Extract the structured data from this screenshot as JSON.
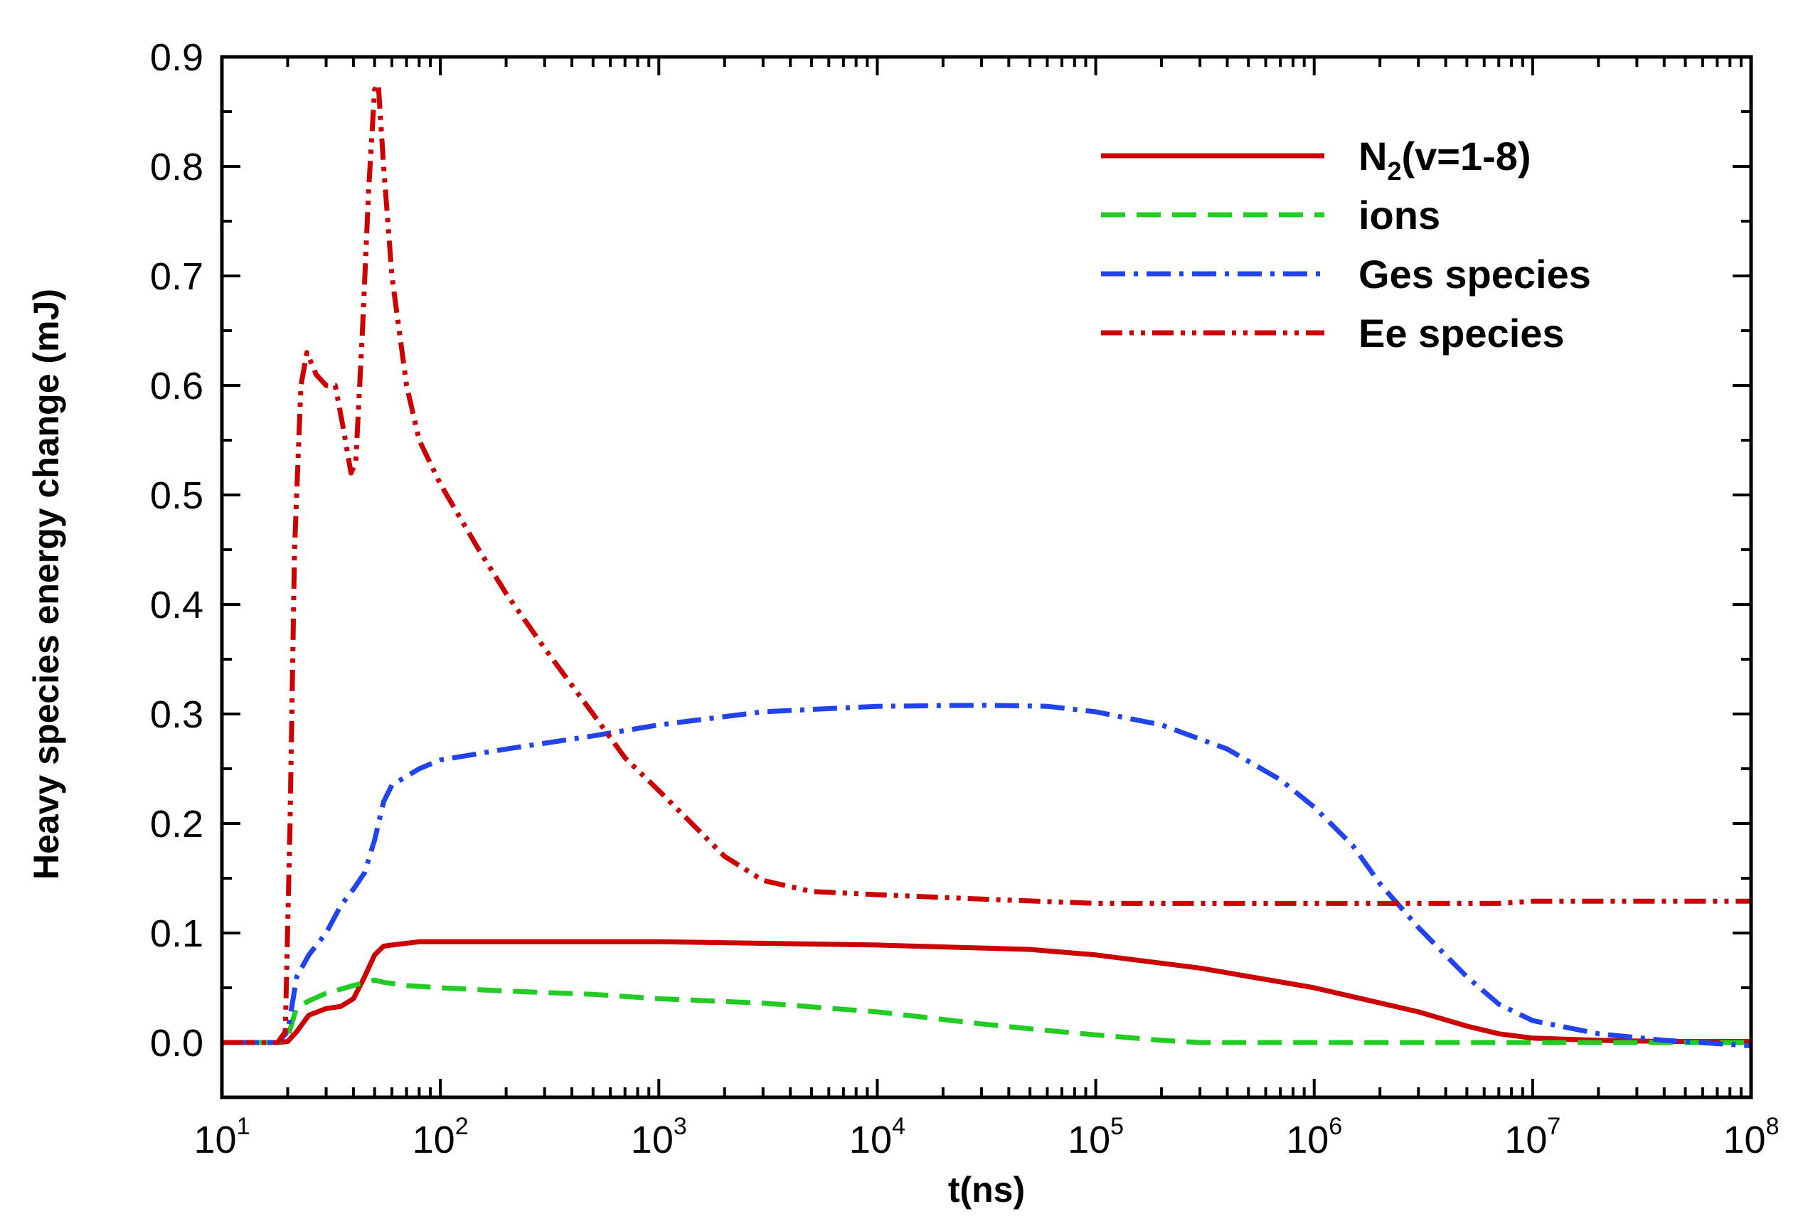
{
  "chart_data": {
    "type": "line",
    "title": "",
    "xlabel": "t(ns)",
    "ylabel": "Heavy species energy change (mJ)",
    "xscale": "log",
    "xlim": [
      10,
      100000000
    ],
    "ylim": [
      -0.05,
      0.9
    ],
    "x_ticks": [
      {
        "base": "10",
        "exp": "1",
        "value": 10
      },
      {
        "base": "10",
        "exp": "2",
        "value": 100
      },
      {
        "base": "10",
        "exp": "3",
        "value": 1000
      },
      {
        "base": "10",
        "exp": "4",
        "value": 10000
      },
      {
        "base": "10",
        "exp": "5",
        "value": 100000
      },
      {
        "base": "10",
        "exp": "6",
        "value": 1000000
      },
      {
        "base": "10",
        "exp": "7",
        "value": 10000000
      },
      {
        "base": "10",
        "exp": "8",
        "value": 100000000
      }
    ],
    "y_ticks": [
      "0.0",
      "0.1",
      "0.2",
      "0.3",
      "0.4",
      "0.5",
      "0.6",
      "0.7",
      "0.8",
      "0.9"
    ],
    "legend_position": "top-right",
    "series": [
      {
        "name": "N2(v=1-8)",
        "legend_main": "N",
        "legend_sub": "2",
        "legend_rest": "(v=1-8)",
        "color": "#cc0000",
        "dash": "solid",
        "points": [
          [
            10,
            0
          ],
          [
            18,
            0
          ],
          [
            20,
            0.001
          ],
          [
            22,
            0.01
          ],
          [
            25,
            0.025
          ],
          [
            30,
            0.031
          ],
          [
            35,
            0.033
          ],
          [
            40,
            0.04
          ],
          [
            45,
            0.06
          ],
          [
            50,
            0.08
          ],
          [
            55,
            0.088
          ],
          [
            60,
            0.089
          ],
          [
            80,
            0.092
          ],
          [
            100,
            0.092
          ],
          [
            1000,
            0.092
          ],
          [
            10000,
            0.089
          ],
          [
            50000,
            0.085
          ],
          [
            100000,
            0.08
          ],
          [
            300000,
            0.068
          ],
          [
            1000000,
            0.05
          ],
          [
            3000000,
            0.028
          ],
          [
            5000000,
            0.015
          ],
          [
            7000000,
            0.008
          ],
          [
            10000000,
            0.004
          ],
          [
            20000000,
            0.002
          ],
          [
            40000000,
            0.001
          ],
          [
            100000000,
            0.001
          ]
        ]
      },
      {
        "name": "ions",
        "legend_main": "ions",
        "legend_sub": "",
        "legend_rest": "",
        "color": "#22cc22",
        "dash": "dashed",
        "points": [
          [
            10,
            0
          ],
          [
            18,
            0
          ],
          [
            20,
            0.005
          ],
          [
            22,
            0.032
          ],
          [
            25,
            0.038
          ],
          [
            30,
            0.045
          ],
          [
            40,
            0.052
          ],
          [
            50,
            0.057
          ],
          [
            55,
            0.055
          ],
          [
            70,
            0.052
          ],
          [
            100,
            0.05
          ],
          [
            200,
            0.047
          ],
          [
            500,
            0.044
          ],
          [
            1000,
            0.04
          ],
          [
            3000,
            0.036
          ],
          [
            10000,
            0.028
          ],
          [
            30000,
            0.017
          ],
          [
            60000,
            0.011
          ],
          [
            100000,
            0.007
          ],
          [
            200000,
            0.002
          ],
          [
            300000,
            0.0
          ],
          [
            1000000,
            0.0
          ],
          [
            100000000,
            0.0
          ]
        ]
      },
      {
        "name": "Ges species",
        "legend_main": "Ges species",
        "legend_sub": "",
        "legend_rest": "",
        "color": "#2244ee",
        "dash": "dashdot",
        "points": [
          [
            10,
            0
          ],
          [
            18,
            0
          ],
          [
            20,
            0.01
          ],
          [
            22,
            0.06
          ],
          [
            25,
            0.08
          ],
          [
            30,
            0.1
          ],
          [
            35,
            0.125
          ],
          [
            40,
            0.14
          ],
          [
            45,
            0.155
          ],
          [
            50,
            0.185
          ],
          [
            55,
            0.22
          ],
          [
            60,
            0.235
          ],
          [
            80,
            0.25
          ],
          [
            100,
            0.258
          ],
          [
            200,
            0.268
          ],
          [
            500,
            0.28
          ],
          [
            1000,
            0.29
          ],
          [
            3000,
            0.302
          ],
          [
            10000,
            0.307
          ],
          [
            30000,
            0.308
          ],
          [
            60000,
            0.307
          ],
          [
            100000,
            0.302
          ],
          [
            200000,
            0.29
          ],
          [
            400000,
            0.268
          ],
          [
            700000,
            0.24
          ],
          [
            1000000,
            0.215
          ],
          [
            1500000,
            0.18
          ],
          [
            2000000,
            0.145
          ],
          [
            3000000,
            0.105
          ],
          [
            5000000,
            0.06
          ],
          [
            7000000,
            0.035
          ],
          [
            10000000,
            0.02
          ],
          [
            20000000,
            0.008
          ],
          [
            40000000,
            0.002
          ],
          [
            70000000,
            -0.001
          ],
          [
            100000000,
            -0.003
          ]
        ]
      },
      {
        "name": "Ee species",
        "legend_main": "Ee species",
        "legend_sub": "",
        "legend_rest": "",
        "color": "#cc0000",
        "dash": "dashdotdot",
        "points": [
          [
            10,
            0
          ],
          [
            18,
            0
          ],
          [
            19.5,
            0.01
          ],
          [
            20.5,
            0.2
          ],
          [
            21.5,
            0.45
          ],
          [
            23,
            0.6
          ],
          [
            24.5,
            0.63
          ],
          [
            27,
            0.61
          ],
          [
            30,
            0.6
          ],
          [
            33,
            0.6
          ],
          [
            36,
            0.56
          ],
          [
            39,
            0.52
          ],
          [
            41,
            0.53
          ],
          [
            44,
            0.65
          ],
          [
            47,
            0.78
          ],
          [
            50,
            0.87
          ],
          [
            52,
            0.875
          ],
          [
            55,
            0.8
          ],
          [
            60,
            0.7
          ],
          [
            70,
            0.6
          ],
          [
            80,
            0.55
          ],
          [
            100,
            0.51
          ],
          [
            150,
            0.45
          ],
          [
            200,
            0.41
          ],
          [
            300,
            0.36
          ],
          [
            500,
            0.3
          ],
          [
            700,
            0.26
          ],
          [
            1000,
            0.23
          ],
          [
            1500,
            0.195
          ],
          [
            2000,
            0.17
          ],
          [
            3000,
            0.148
          ],
          [
            5000,
            0.138
          ],
          [
            10000,
            0.135
          ],
          [
            30000,
            0.131
          ],
          [
            100000,
            0.127
          ],
          [
            1000000,
            0.127
          ],
          [
            7000000,
            0.127
          ],
          [
            10000000,
            0.129
          ],
          [
            100000000,
            0.129
          ]
        ]
      }
    ]
  }
}
